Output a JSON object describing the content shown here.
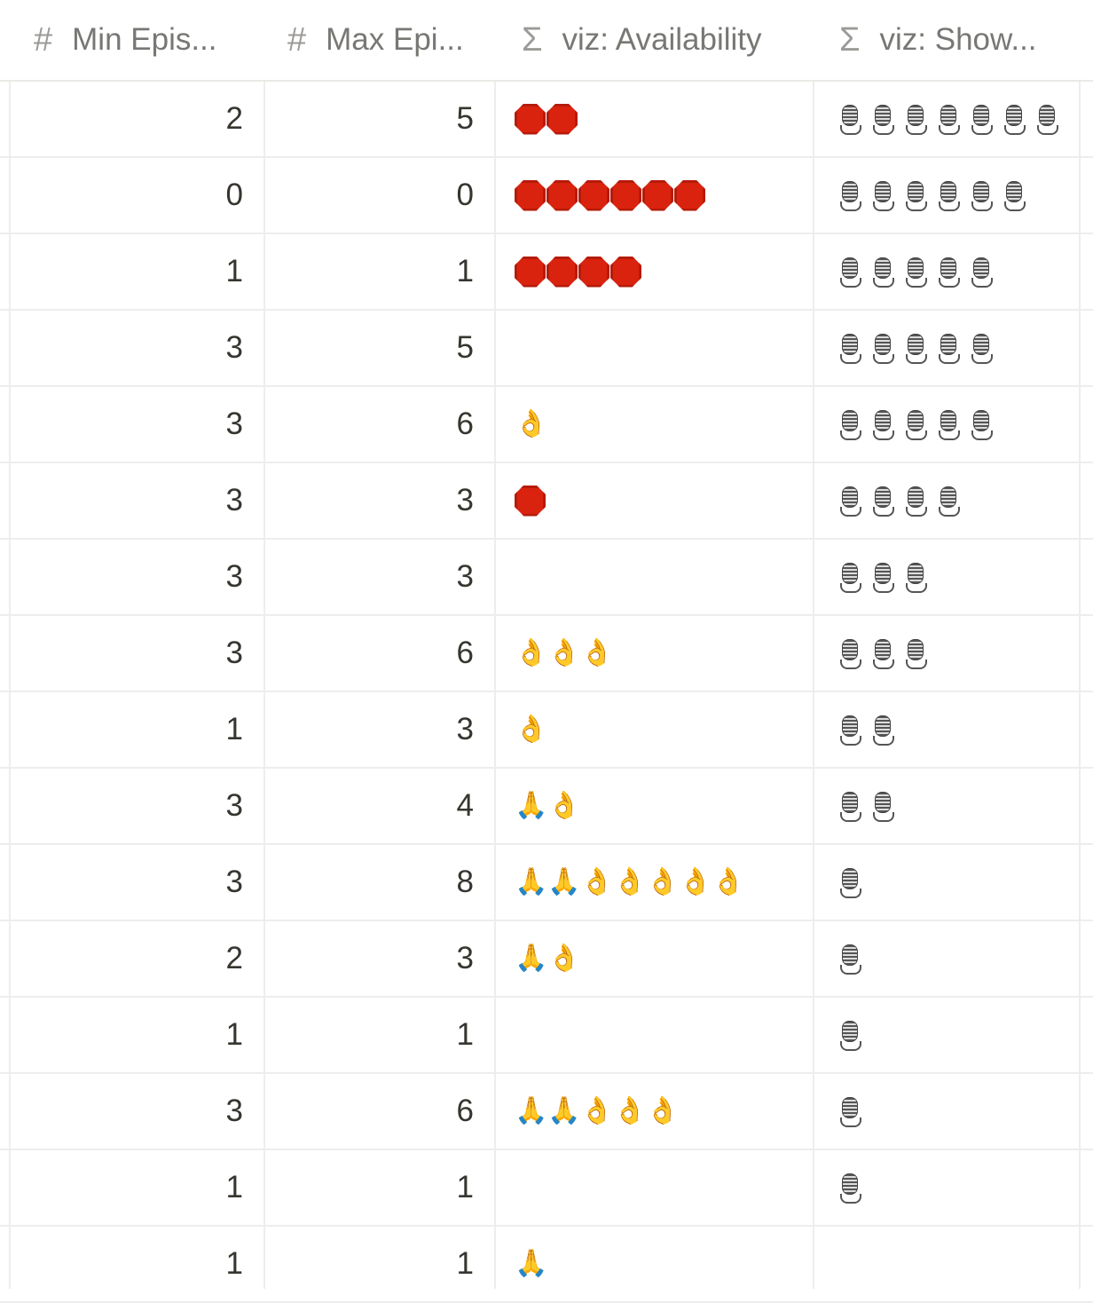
{
  "columns": [
    {
      "icon": "#",
      "label": "Min Epis..."
    },
    {
      "icon": "#",
      "label": "Max Epi..."
    },
    {
      "icon": "Σ",
      "label": "viz: Availability"
    },
    {
      "icon": "Σ",
      "label": "viz: Show..."
    }
  ],
  "rows": [
    {
      "min": "2",
      "max": "5",
      "availability": [
        "stop",
        "stop"
      ],
      "shows": 7
    },
    {
      "min": "0",
      "max": "0",
      "availability": [
        "stop",
        "stop",
        "stop",
        "stop",
        "stop",
        "stop"
      ],
      "shows": 6
    },
    {
      "min": "1",
      "max": "1",
      "availability": [
        "stop",
        "stop",
        "stop",
        "stop"
      ],
      "shows": 5
    },
    {
      "min": "3",
      "max": "5",
      "availability": [],
      "shows": 5
    },
    {
      "min": "3",
      "max": "6",
      "availability": [
        "ok"
      ],
      "shows": 5
    },
    {
      "min": "3",
      "max": "3",
      "availability": [
        "stop"
      ],
      "shows": 4
    },
    {
      "min": "3",
      "max": "3",
      "availability": [],
      "shows": 3
    },
    {
      "min": "3",
      "max": "6",
      "availability": [
        "ok",
        "ok",
        "ok"
      ],
      "shows": 3
    },
    {
      "min": "1",
      "max": "3",
      "availability": [
        "ok"
      ],
      "shows": 2
    },
    {
      "min": "3",
      "max": "4",
      "availability": [
        "pray",
        "ok"
      ],
      "shows": 2
    },
    {
      "min": "3",
      "max": "8",
      "availability": [
        "pray",
        "pray",
        "ok",
        "ok",
        "ok",
        "ok",
        "ok"
      ],
      "shows": 1
    },
    {
      "min": "2",
      "max": "3",
      "availability": [
        "pray",
        "ok"
      ],
      "shows": 1
    },
    {
      "min": "1",
      "max": "1",
      "availability": [],
      "shows": 1
    },
    {
      "min": "3",
      "max": "6",
      "availability": [
        "pray",
        "pray",
        "ok",
        "ok",
        "ok"
      ],
      "shows": 1
    },
    {
      "min": "1",
      "max": "1",
      "availability": [],
      "shows": 1
    },
    {
      "min": "1",
      "max": "1",
      "availability": [
        "pray"
      ],
      "shows": 0
    }
  ],
  "icons": {
    "stop": "stop-sign-icon",
    "ok": "ok-hand-icon",
    "pray": "folded-hands-icon",
    "mic": "studio-microphone-icon"
  },
  "colors": {
    "stop": "#d9230f",
    "gold": "#f5b82a",
    "border": "#ededec",
    "header_text": "#787774"
  }
}
